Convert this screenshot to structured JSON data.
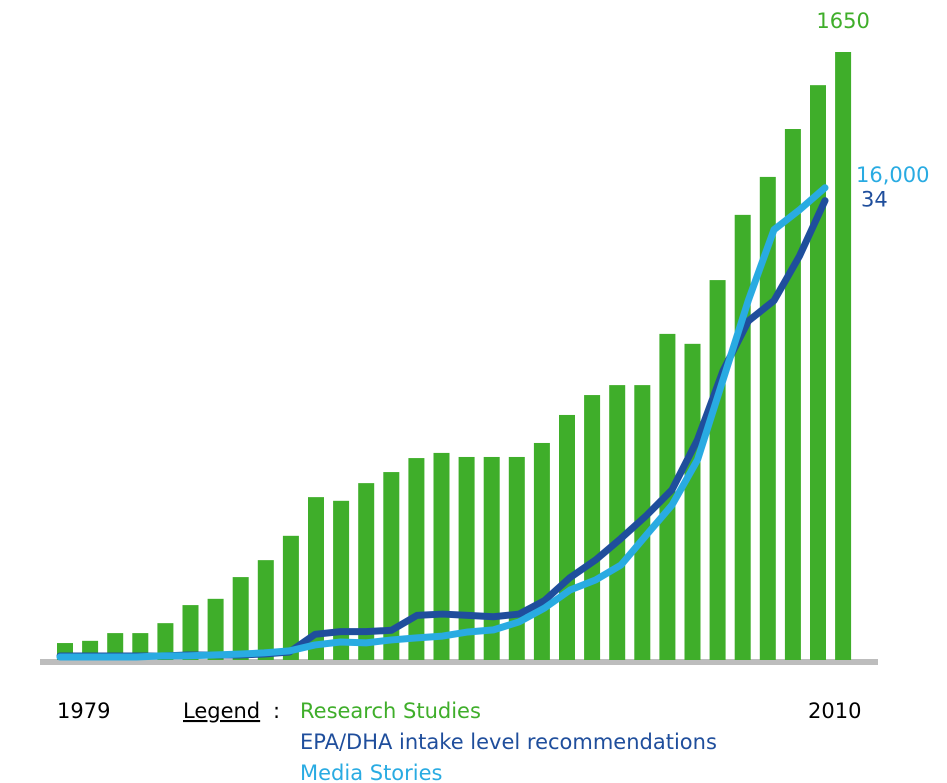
{
  "chart_data": {
    "type": "bar",
    "categories": [
      "1979",
      null,
      null,
      null,
      null,
      null,
      null,
      null,
      null,
      null,
      null,
      null,
      null,
      null,
      null,
      null,
      null,
      null,
      null,
      null,
      null,
      null,
      null,
      null,
      null,
      null,
      null,
      null,
      null,
      null,
      null,
      "2010"
    ],
    "legend_title": "Legend",
    "legend_separator": ":",
    "series": [
      {
        "name": "Research Studies",
        "type": "bar",
        "color": "#3fae2a",
        "ylim": [
          0,
          1650
        ],
        "values": [
          46,
          52,
          73,
          73,
          100,
          149,
          166,
          225,
          271,
          337,
          442,
          432,
          480,
          510,
          548,
          562,
          551,
          551,
          551,
          589,
          665,
          719,
          746,
          746,
          885,
          858,
          1031,
          1208,
          1311,
          1441,
          1560,
          1650
        ],
        "value_labels": [
          null,
          null,
          null,
          null,
          null,
          null,
          null,
          null,
          null,
          null,
          null,
          null,
          null,
          null,
          null,
          null,
          null,
          null,
          null,
          null,
          null,
          null,
          null,
          null,
          null,
          null,
          null,
          null,
          null,
          null,
          null,
          "1650"
        ]
      },
      {
        "name": "EPA/DHA intake level recommendations",
        "type": "line",
        "color": "#1f4e9c",
        "ylim": [
          0,
          45
        ],
        "values": [
          0.3,
          0.3,
          0.3,
          0.3,
          0.3,
          0.37,
          0.37,
          0.37,
          0.44,
          0.59,
          1.9,
          2.1,
          2.1,
          2.2,
          3.3,
          3.4,
          3.3,
          3.2,
          3.4,
          4.4,
          6.1,
          7.4,
          9.0,
          10.7,
          12.6,
          16.3,
          21.4,
          25.1,
          26.6,
          29.9,
          34,
          null
        ],
        "value_labels": [
          null,
          null,
          null,
          null,
          null,
          null,
          null,
          null,
          null,
          null,
          null,
          null,
          null,
          null,
          null,
          null,
          null,
          null,
          null,
          null,
          null,
          null,
          null,
          null,
          null,
          null,
          null,
          null,
          null,
          null,
          "34",
          null
        ]
      },
      {
        "name": "Media Stories",
        "type": "line",
        "color": "#29abe2",
        "ylim": [
          0,
          20600
        ],
        "values": [
          100,
          100,
          100,
          100,
          140,
          140,
          170,
          200,
          240,
          310,
          510,
          610,
          580,
          680,
          750,
          810,
          950,
          1020,
          1290,
          1760,
          2370,
          2710,
          3220,
          4240,
          5250,
          6780,
          9490,
          12200,
          14580,
          15250,
          16000,
          null
        ],
        "value_labels": [
          null,
          null,
          null,
          null,
          null,
          null,
          null,
          null,
          null,
          null,
          null,
          null,
          null,
          null,
          null,
          null,
          null,
          null,
          null,
          null,
          null,
          null,
          null,
          null,
          null,
          null,
          null,
          null,
          null,
          null,
          "16,000",
          null
        ]
      }
    ]
  }
}
